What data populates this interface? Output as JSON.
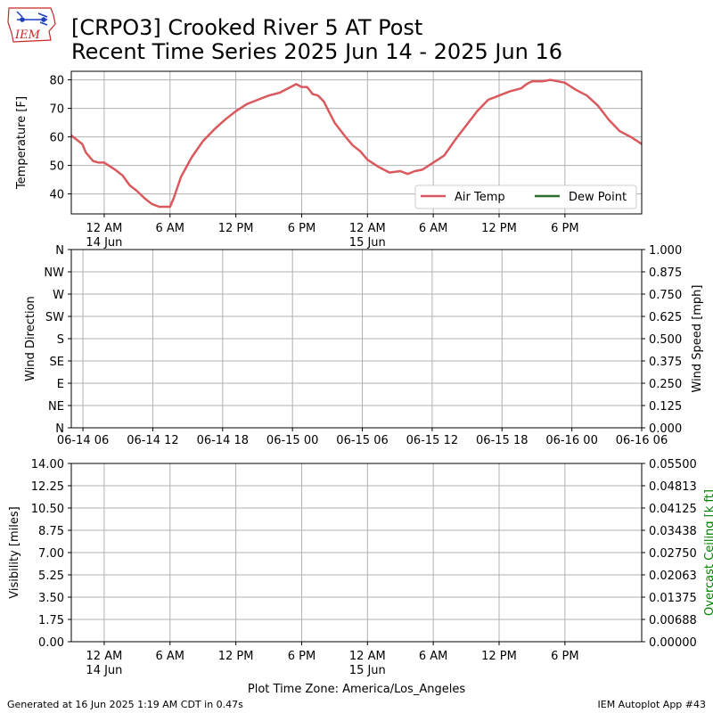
{
  "header": {
    "title_line1": "[CRPO3] Crooked River 5 AT Post",
    "title_line2": "Recent Time Series 2025 Jun 14 - 2025 Jun 16",
    "logo_text": "IEM"
  },
  "footer": {
    "generated": "Generated at 16 Jun 2025 1:19 AM CDT in 0.47s",
    "app": "IEM Autoplot App #43",
    "timezone_label": "Plot Time Zone: America/Los_Angeles"
  },
  "colors": {
    "air_temp": "#d9595e",
    "dew_point": "#2e6b2e",
    "grid": "#b0b0b0",
    "ceiling_label": "#008000"
  },
  "chart_data": [
    {
      "type": "line",
      "panel": "temperature",
      "ylabel": "Temperature [F]",
      "ylim": [
        33,
        83
      ],
      "yticks": [
        40,
        50,
        60,
        70,
        80
      ],
      "xlim": [
        "2025-06-13 21:00",
        "2025-06-16 01:00"
      ],
      "x_tick_labels": [
        {
          "label": "12 AM",
          "sub": "14 Jun",
          "t": "2025-06-14 00:00"
        },
        {
          "label": "6 AM",
          "sub": "",
          "t": "2025-06-14 06:00"
        },
        {
          "label": "12 PM",
          "sub": "",
          "t": "2025-06-14 12:00"
        },
        {
          "label": "6 PM",
          "sub": "",
          "t": "2025-06-14 18:00"
        },
        {
          "label": "12 AM",
          "sub": "15 Jun",
          "t": "2025-06-15 00:00"
        },
        {
          "label": "6 AM",
          "sub": "",
          "t": "2025-06-15 06:00"
        },
        {
          "label": "12 PM",
          "sub": "",
          "t": "2025-06-15 12:00"
        },
        {
          "label": "6 PM",
          "sub": "",
          "t": "2025-06-15 18:00"
        }
      ],
      "grid": true,
      "legend": {
        "placement": "lower-right",
        "entries": [
          "Air Temp",
          "Dew Point"
        ]
      },
      "series": [
        {
          "name": "Air Temp",
          "x": [
            "2025-06-13 21:00",
            "2025-06-13 22:00",
            "2025-06-13 22:20",
            "2025-06-13 23:00",
            "2025-06-13 23:30",
            "2025-06-14 00:00",
            "2025-06-14 01:00",
            "2025-06-14 01:40",
            "2025-06-14 02:20",
            "2025-06-14 03:00",
            "2025-06-14 03:40",
            "2025-06-14 04:20",
            "2025-06-14 05:00",
            "2025-06-14 05:40",
            "2025-06-14 06:00",
            "2025-06-14 06:20",
            "2025-06-14 07:00",
            "2025-06-14 08:00",
            "2025-06-14 09:00",
            "2025-06-14 10:00",
            "2025-06-14 11:00",
            "2025-06-14 12:00",
            "2025-06-14 13:00",
            "2025-06-14 14:00",
            "2025-06-14 15:00",
            "2025-06-14 16:00",
            "2025-06-14 17:00",
            "2025-06-14 17:30",
            "2025-06-14 18:00",
            "2025-06-14 18:30",
            "2025-06-14 19:00",
            "2025-06-14 19:30",
            "2025-06-14 20:00",
            "2025-06-14 21:00",
            "2025-06-14 22:00",
            "2025-06-14 22:40",
            "2025-06-14 23:20",
            "2025-06-15 00:00",
            "2025-06-15 01:00",
            "2025-06-15 02:00",
            "2025-06-15 03:00",
            "2025-06-15 03:40",
            "2025-06-15 04:20",
            "2025-06-15 05:00",
            "2025-06-15 06:00",
            "2025-06-15 07:00",
            "2025-06-15 08:00",
            "2025-06-15 09:00",
            "2025-06-15 10:00",
            "2025-06-15 11:00",
            "2025-06-15 12:00",
            "2025-06-15 13:00",
            "2025-06-15 14:00",
            "2025-06-15 14:30",
            "2025-06-15 15:00",
            "2025-06-15 16:00",
            "2025-06-15 16:40",
            "2025-06-15 17:20",
            "2025-06-15 18:00",
            "2025-06-15 19:00",
            "2025-06-15 20:00",
            "2025-06-15 21:00",
            "2025-06-15 22:00",
            "2025-06-15 23:00",
            "2025-06-16 00:00",
            "2025-06-16 01:00"
          ],
          "values": [
            60.5,
            57.5,
            54.5,
            51.5,
            51.0,
            51.0,
            48.5,
            46.5,
            43.0,
            41.0,
            38.5,
            36.5,
            35.5,
            35.5,
            35.5,
            38.5,
            46.0,
            53.0,
            58.5,
            62.5,
            66.0,
            69.0,
            71.5,
            73.0,
            74.5,
            75.5,
            77.5,
            78.5,
            77.5,
            77.5,
            75.0,
            74.5,
            72.5,
            65.0,
            60.0,
            57.0,
            55.0,
            52.0,
            49.5,
            47.5,
            48.0,
            47.0,
            48.0,
            48.5,
            51.0,
            53.5,
            59.0,
            64.0,
            69.0,
            73.0,
            74.5,
            76.0,
            77.0,
            78.5,
            79.5,
            79.5,
            80.0,
            79.5,
            79.0,
            76.5,
            74.5,
            71.0,
            66.0,
            62.0,
            60.0,
            57.5
          ]
        },
        {
          "name": "Dew Point",
          "x": [],
          "values": []
        }
      ]
    },
    {
      "type": "line",
      "panel": "wind",
      "ylabel": "Wind Direction",
      "ylabel_right": "Wind Speed [mph]",
      "left_tick_labels": [
        "N",
        "NE",
        "E",
        "SE",
        "S",
        "SW",
        "W",
        "NW",
        "N"
      ],
      "right_tick_labels": [
        "0.000",
        "0.125",
        "0.250",
        "0.375",
        "0.500",
        "0.625",
        "0.750",
        "0.875",
        "1.000"
      ],
      "ylim": [
        0,
        1
      ],
      "xlim": [
        "2025-06-14 05:00",
        "2025-06-16 06:00"
      ],
      "x_tick_labels": [
        "06-14 06",
        "06-14 12",
        "06-14 18",
        "06-15 00",
        "06-15 06",
        "06-15 12",
        "06-15 18",
        "06-16 00",
        "06-16 06"
      ],
      "grid": true,
      "series": []
    },
    {
      "type": "line",
      "panel": "visibility",
      "ylabel": "Visibility [miles]",
      "ylabel_right": "Overcast Ceiling [k ft]",
      "left_tick_labels": [
        "0.00",
        "1.75",
        "3.50",
        "5.25",
        "7.00",
        "8.75",
        "10.50",
        "12.25",
        "14.00"
      ],
      "right_tick_labels": [
        "0.00000",
        "0.00688",
        "0.01375",
        "0.02063",
        "0.02750",
        "0.03438",
        "0.04125",
        "0.04813",
        "0.05500"
      ],
      "ylim": [
        0,
        14
      ],
      "xlim": [
        "2025-06-13 21:00",
        "2025-06-16 01:00"
      ],
      "x_tick_labels": [
        {
          "label": "12 AM",
          "sub": "14 Jun"
        },
        {
          "label": "6 AM",
          "sub": ""
        },
        {
          "label": "12 PM",
          "sub": ""
        },
        {
          "label": "6 PM",
          "sub": ""
        },
        {
          "label": "12 AM",
          "sub": "15 Jun"
        },
        {
          "label": "6 AM",
          "sub": ""
        },
        {
          "label": "12 PM",
          "sub": ""
        },
        {
          "label": "6 PM",
          "sub": ""
        }
      ],
      "grid": true,
      "series": []
    }
  ]
}
